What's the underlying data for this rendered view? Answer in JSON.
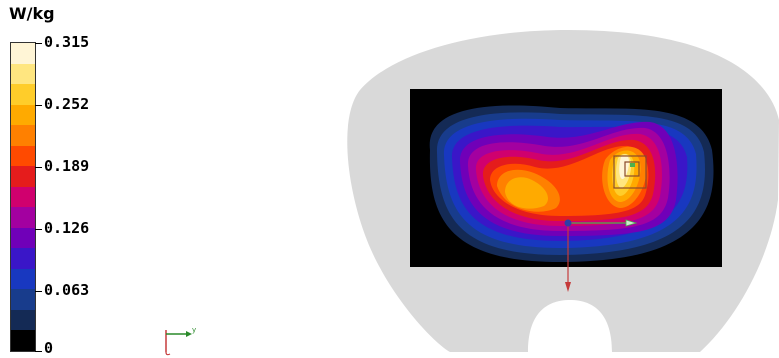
{
  "legend": {
    "unit": "W/kg",
    "ticks": [
      "0.315",
      "0.252",
      "0.189",
      "0.126",
      "0.063",
      "0"
    ],
    "colors": [
      "#fff5d6",
      "#ffe680",
      "#ffcd2a",
      "#ffaa00",
      "#ff8000",
      "#ff4a00",
      "#e51c1c",
      "#d0006e",
      "#a300a0",
      "#7000b8",
      "#3a16c8",
      "#1838c0",
      "#183c8c",
      "#142a55",
      "#000000"
    ]
  },
  "orientation": {
    "axis_label": "y"
  },
  "phantom": {
    "body_color": "#d9d9d9",
    "scan_background": "#000000",
    "arrow_color": "#c53a3a",
    "marker_color": "#2e3ea8",
    "probe_box_color": "#8a4a2a",
    "probe_point_color": "#4db04d"
  }
}
